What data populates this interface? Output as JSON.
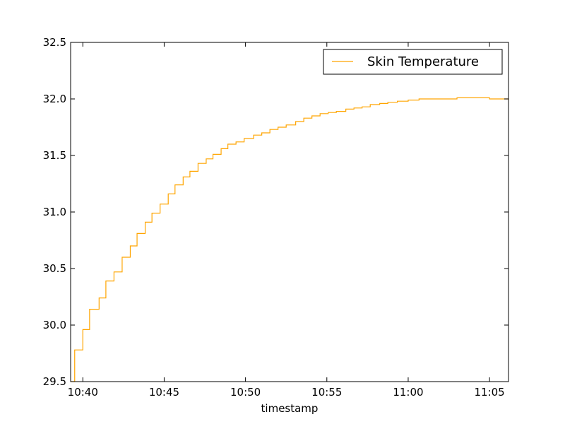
{
  "chart_data": {
    "type": "line",
    "title": "",
    "xlabel": "timestamp",
    "ylabel": "",
    "xlim": [
      "10:39:15",
      "11:06:10"
    ],
    "ylim": [
      29.5,
      32.5
    ],
    "x_ticks": [
      "10:40",
      "10:45",
      "10:50",
      "10:55",
      "11:00",
      "11:05"
    ],
    "y_ticks": [
      "29.5",
      "30.0",
      "30.5",
      "31.0",
      "31.5",
      "32.0",
      "32.5"
    ],
    "grid": false,
    "legend": {
      "position": "top-right",
      "entries": [
        "Skin Temperature"
      ]
    },
    "series": [
      {
        "name": "Skin Temperature",
        "color": "#ffa500",
        "step": true,
        "x": [
          "10:39:15",
          "10:39:30",
          "10:40:00",
          "10:40:25",
          "10:41:00",
          "10:41:25",
          "10:41:55",
          "10:42:25",
          "10:42:55",
          "10:43:20",
          "10:43:50",
          "10:44:15",
          "10:44:45",
          "10:45:15",
          "10:45:40",
          "10:46:10",
          "10:46:35",
          "10:47:05",
          "10:47:35",
          "10:48:00",
          "10:48:30",
          "10:48:55",
          "10:49:25",
          "10:49:55",
          "10:50:30",
          "10:51:00",
          "10:51:30",
          "10:52:00",
          "10:52:30",
          "10:53:05",
          "10:53:35",
          "10:54:05",
          "10:54:35",
          "10:55:05",
          "10:55:35",
          "10:56:10",
          "10:56:40",
          "10:57:10",
          "10:57:40",
          "10:58:15",
          "10:58:45",
          "10:59:20",
          "11:00:00",
          "11:00:40",
          "11:01:25",
          "11:02:10",
          "11:03:00",
          "11:03:50",
          "11:05:00",
          "11:05:40",
          "11:06:10"
        ],
        "y": [
          29.5,
          29.78,
          29.96,
          30.14,
          30.24,
          30.39,
          30.47,
          30.6,
          30.7,
          30.81,
          30.91,
          30.99,
          31.07,
          31.16,
          31.24,
          31.31,
          31.36,
          31.43,
          31.47,
          31.51,
          31.56,
          31.6,
          31.62,
          31.65,
          31.68,
          31.7,
          31.73,
          31.75,
          31.77,
          31.8,
          31.83,
          31.85,
          31.87,
          31.88,
          31.89,
          31.91,
          31.92,
          31.93,
          31.95,
          31.96,
          31.97,
          31.98,
          31.99,
          32.0,
          32.0,
          32.0,
          32.01,
          32.01,
          32.0,
          32.0,
          31.99
        ]
      }
    ]
  }
}
